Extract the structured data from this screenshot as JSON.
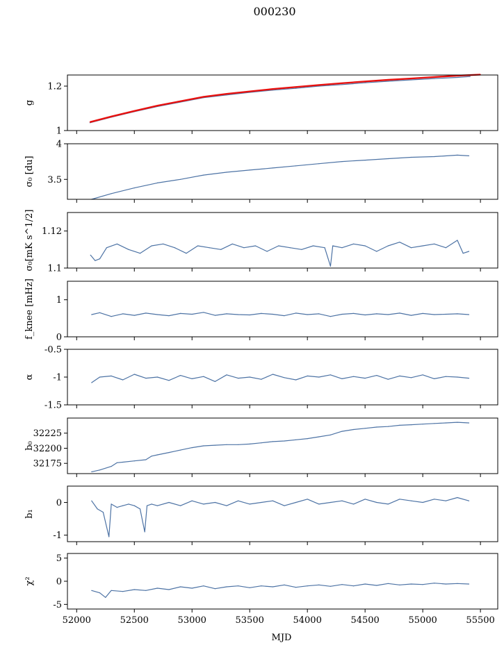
{
  "title": "000230",
  "xlabel": "MJD",
  "colors": {
    "series": "#4c72a4",
    "fit": "#e8110f"
  },
  "chart_data": [
    {
      "type": "line",
      "ylabel": "g",
      "ylim": [
        1.0,
        1.25
      ],
      "yticks": [
        1.0,
        1.2
      ],
      "xlim": [
        51920,
        55650
      ],
      "series": [
        {
          "kind": "main",
          "x": [
            52115,
            52300,
            52500,
            52700,
            52900,
            53100,
            53300,
            53500,
            53700,
            53900,
            54100,
            54300,
            54500,
            54700,
            54900,
            55100,
            55300,
            55410
          ],
          "values": [
            1.035,
            1.06,
            1.085,
            1.108,
            1.128,
            1.148,
            1.16,
            1.172,
            1.182,
            1.19,
            1.2,
            1.207,
            1.215,
            1.222,
            1.228,
            1.234,
            1.239,
            1.243
          ]
        },
        {
          "kind": "fit",
          "x": [
            52115,
            52300,
            52500,
            52700,
            52900,
            53100,
            53300,
            53500,
            53700,
            53900,
            54100,
            54300,
            54500,
            54700,
            54900,
            55100,
            55300,
            55500
          ],
          "values": [
            1.038,
            1.063,
            1.088,
            1.112,
            1.132,
            1.152,
            1.165,
            1.176,
            1.187,
            1.196,
            1.205,
            1.213,
            1.221,
            1.228,
            1.234,
            1.241,
            1.247,
            1.252
          ]
        }
      ]
    },
    {
      "type": "line",
      "ylabel": "σ₀ [du]",
      "ylim": [
        3.22,
        4.0
      ],
      "yticks": [
        3.5,
        4.0
      ],
      "xlim": [
        51920,
        55650
      ],
      "series": [
        {
          "kind": "main",
          "x": [
            52130,
            52300,
            52500,
            52700,
            52900,
            53100,
            53300,
            53500,
            53700,
            53900,
            54100,
            54300,
            54500,
            54700,
            54900,
            55100,
            55300,
            55400
          ],
          "values": [
            3.22,
            3.3,
            3.38,
            3.45,
            3.5,
            3.56,
            3.6,
            3.63,
            3.66,
            3.69,
            3.72,
            3.75,
            3.77,
            3.79,
            3.81,
            3.82,
            3.84,
            3.83
          ]
        }
      ]
    },
    {
      "type": "line",
      "ylabel": "σ₀[mK s^1/2]",
      "ylim": [
        1.1,
        1.13
      ],
      "yticks": [
        1.1,
        1.12
      ],
      "xlim": [
        51920,
        55650
      ],
      "series": [
        {
          "kind": "main",
          "x": [
            52120,
            52160,
            52200,
            52260,
            52350,
            52450,
            52550,
            52650,
            52750,
            52850,
            52950,
            53050,
            53150,
            53250,
            53350,
            53450,
            53550,
            53650,
            53750,
            53850,
            53950,
            54050,
            54150,
            54200,
            54220,
            54300,
            54400,
            54500,
            54600,
            54700,
            54800,
            54900,
            55000,
            55100,
            55200,
            55300,
            55350,
            55400
          ],
          "values": [
            1.107,
            1.104,
            1.105,
            1.111,
            1.113,
            1.11,
            1.108,
            1.112,
            1.113,
            1.111,
            1.108,
            1.112,
            1.111,
            1.11,
            1.113,
            1.111,
            1.112,
            1.109,
            1.112,
            1.111,
            1.11,
            1.112,
            1.111,
            1.101,
            1.112,
            1.111,
            1.113,
            1.112,
            1.109,
            1.112,
            1.114,
            1.111,
            1.112,
            1.113,
            1.111,
            1.115,
            1.108,
            1.109
          ]
        }
      ]
    },
    {
      "type": "line",
      "ylabel": "f_knee [mHz]",
      "ylim": [
        0,
        1.5
      ],
      "yticks": [
        0,
        1
      ],
      "xlim": [
        51920,
        55650
      ],
      "series": [
        {
          "kind": "main",
          "x": [
            52130,
            52200,
            52300,
            52400,
            52500,
            52600,
            52700,
            52800,
            52900,
            53000,
            53100,
            53200,
            53300,
            53400,
            53500,
            53600,
            53700,
            53800,
            53900,
            54000,
            54100,
            54200,
            54300,
            54400,
            54500,
            54600,
            54700,
            54800,
            54900,
            55000,
            55100,
            55200,
            55300,
            55400
          ],
          "values": [
            0.6,
            0.65,
            0.55,
            0.62,
            0.58,
            0.64,
            0.6,
            0.57,
            0.63,
            0.61,
            0.66,
            0.58,
            0.62,
            0.6,
            0.59,
            0.63,
            0.61,
            0.57,
            0.64,
            0.6,
            0.62,
            0.55,
            0.61,
            0.63,
            0.59,
            0.62,
            0.6,
            0.64,
            0.58,
            0.63,
            0.6,
            0.61,
            0.62,
            0.6
          ]
        }
      ]
    },
    {
      "type": "line",
      "ylabel": "α",
      "ylim": [
        -1.5,
        -0.5
      ],
      "yticks": [
        -1.5,
        -1.0,
        -0.5
      ],
      "xlim": [
        51920,
        55650
      ],
      "series": [
        {
          "kind": "main",
          "x": [
            52130,
            52200,
            52300,
            52400,
            52500,
            52600,
            52700,
            52800,
            52900,
            53000,
            53100,
            53200,
            53300,
            53400,
            53500,
            53600,
            53700,
            53800,
            53900,
            54000,
            54100,
            54200,
            54300,
            54400,
            54500,
            54600,
            54700,
            54800,
            54900,
            55000,
            55100,
            55200,
            55300,
            55400
          ],
          "values": [
            -1.1,
            -1.0,
            -0.98,
            -1.05,
            -0.95,
            -1.02,
            -1.0,
            -1.06,
            -0.97,
            -1.03,
            -0.99,
            -1.08,
            -0.96,
            -1.02,
            -1.0,
            -1.04,
            -0.95,
            -1.01,
            -1.05,
            -0.98,
            -1.0,
            -0.96,
            -1.03,
            -0.99,
            -1.02,
            -0.97,
            -1.04,
            -0.98,
            -1.01,
            -0.96,
            -1.03,
            -0.99,
            -1.0,
            -1.02
          ]
        }
      ]
    },
    {
      "type": "line",
      "ylabel": "b₀",
      "ylim": [
        32158,
        32250
      ],
      "yticks": [
        32175,
        32200,
        32225
      ],
      "xlim": [
        51920,
        55650
      ],
      "series": [
        {
          "kind": "main",
          "x": [
            52130,
            52200,
            52300,
            52350,
            52400,
            52500,
            52600,
            52650,
            52700,
            52800,
            52900,
            53000,
            53100,
            53200,
            53300,
            53400,
            53500,
            53600,
            53700,
            53800,
            53900,
            54000,
            54100,
            54200,
            54300,
            54400,
            54500,
            54600,
            54700,
            54800,
            54900,
            55000,
            55100,
            55200,
            55300,
            55400
          ],
          "values": [
            32161,
            32164,
            32170,
            32176,
            32177,
            32179,
            32181,
            32187,
            32189,
            32193,
            32197,
            32201,
            32204,
            32205,
            32206,
            32206,
            32207,
            32209,
            32211,
            32212,
            32214,
            32216,
            32219,
            32222,
            32228,
            32231,
            32233,
            32235,
            32236,
            32238,
            32239,
            32240,
            32241,
            32242,
            32243,
            32242
          ]
        }
      ]
    },
    {
      "type": "line",
      "ylabel": "b₁",
      "ylim": [
        -1.2,
        0.5
      ],
      "yticks": [
        -1,
        0
      ],
      "xlim": [
        51920,
        55650
      ],
      "series": [
        {
          "kind": "main",
          "x": [
            52130,
            52180,
            52230,
            52280,
            52300,
            52350,
            52400,
            52450,
            52500,
            52550,
            52590,
            52610,
            52650,
            52700,
            52800,
            52900,
            53000,
            53100,
            53200,
            53300,
            53400,
            53500,
            53600,
            53700,
            53800,
            53900,
            54000,
            54100,
            54200,
            54300,
            54400,
            54500,
            54600,
            54700,
            54800,
            54900,
            55000,
            55100,
            55200,
            55300,
            55400
          ],
          "values": [
            0.05,
            -0.2,
            -0.3,
            -1.05,
            -0.05,
            -0.15,
            -0.1,
            -0.05,
            -0.1,
            -0.2,
            -0.9,
            -0.1,
            -0.05,
            -0.1,
            0.0,
            -0.1,
            0.05,
            -0.05,
            0.0,
            -0.1,
            0.05,
            -0.05,
            0.0,
            0.05,
            -0.1,
            0.0,
            0.1,
            -0.05,
            0.0,
            0.05,
            -0.05,
            0.1,
            0.0,
            -0.05,
            0.1,
            0.05,
            0.0,
            0.1,
            0.05,
            0.15,
            0.05
          ]
        }
      ]
    },
    {
      "type": "line",
      "ylabel": "χ²",
      "ylim": [
        -6,
        6
      ],
      "yticks": [
        -5,
        0,
        5
      ],
      "xlim": [
        51920,
        55650
      ],
      "xticks": [
        52000,
        52500,
        53000,
        53500,
        54000,
        54500,
        55000,
        55500
      ],
      "series": [
        {
          "kind": "main",
          "x": [
            52130,
            52200,
            52250,
            52300,
            52400,
            52500,
            52600,
            52700,
            52800,
            52900,
            53000,
            53100,
            53200,
            53300,
            53400,
            53500,
            53600,
            53700,
            53800,
            53900,
            54000,
            54100,
            54200,
            54300,
            54400,
            54500,
            54600,
            54700,
            54800,
            54900,
            55000,
            55100,
            55200,
            55300,
            55400
          ],
          "values": [
            -2.0,
            -2.5,
            -3.5,
            -2.0,
            -2.2,
            -1.8,
            -2.0,
            -1.5,
            -1.8,
            -1.2,
            -1.5,
            -1.0,
            -1.6,
            -1.2,
            -1.0,
            -1.4,
            -1.0,
            -1.2,
            -0.8,
            -1.3,
            -1.0,
            -0.8,
            -1.1,
            -0.7,
            -1.0,
            -0.6,
            -0.9,
            -0.5,
            -0.8,
            -0.6,
            -0.7,
            -0.4,
            -0.6,
            -0.5,
            -0.6
          ]
        }
      ]
    }
  ]
}
